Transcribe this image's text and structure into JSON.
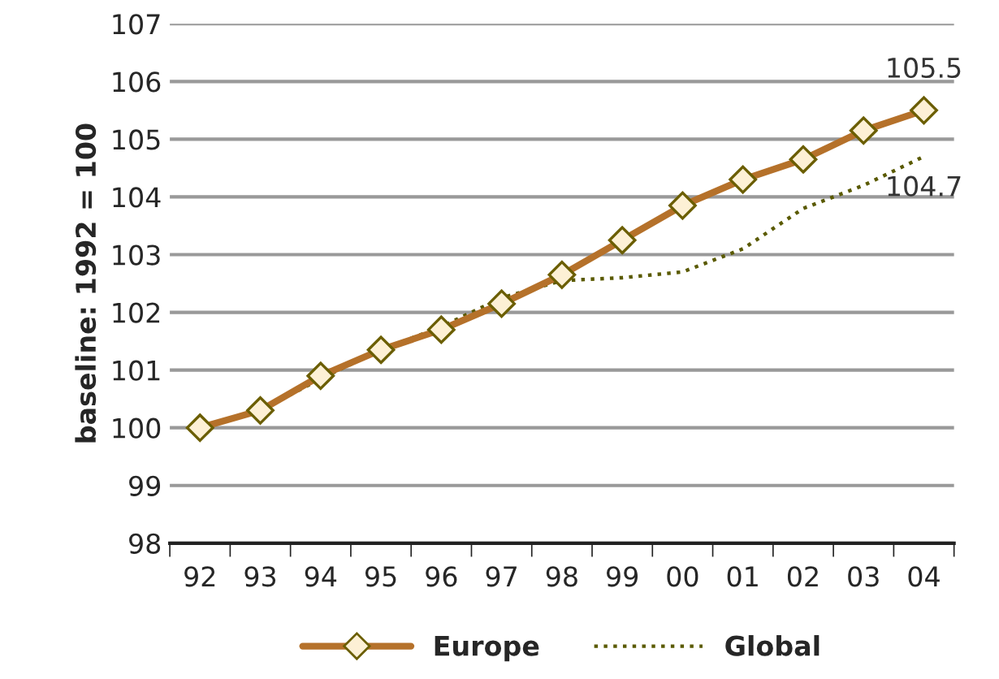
{
  "chart_data": {
    "type": "line",
    "ylabel": "baseline: 1992 = 100",
    "categories": [
      "92",
      "93",
      "94",
      "95",
      "96",
      "97",
      "98",
      "99",
      "00",
      "01",
      "02",
      "03",
      "04"
    ],
    "series": [
      {
        "name": "Europe",
        "color": "#b5712a",
        "marker": "diamond",
        "line_style": "solid",
        "values": [
          100,
          100.3,
          100.9,
          101.35,
          101.7,
          102.15,
          102.65,
          103.25,
          103.85,
          104.3,
          104.65,
          105.15,
          105.5
        ],
        "value_labels": [
          null,
          null,
          null,
          null,
          null,
          null,
          null,
          null,
          null,
          null,
          null,
          null,
          "105.5"
        ]
      },
      {
        "name": "Global",
        "color": "#5a5a00",
        "marker": "none",
        "line_style": "dotted",
        "values": [
          100,
          100.3,
          100.85,
          101.35,
          101.75,
          102.25,
          102.55,
          102.6,
          102.7,
          103.1,
          103.8,
          104.2,
          104.7
        ],
        "value_labels": [
          null,
          null,
          null,
          null,
          null,
          null,
          null,
          null,
          null,
          null,
          null,
          null,
          "104.7"
        ]
      }
    ],
    "ylim": [
      98,
      107
    ],
    "yticks": [
      98,
      99,
      100,
      101,
      102,
      103,
      104,
      105,
      106,
      107
    ],
    "grid": "y",
    "legend": "bottom"
  }
}
